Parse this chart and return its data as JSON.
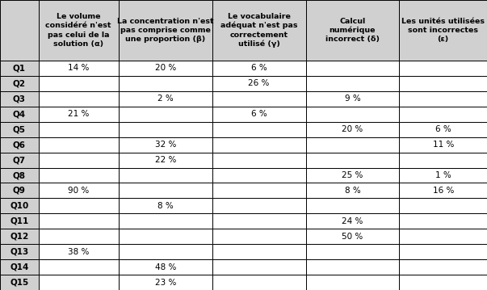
{
  "col_headers": [
    "Le volume\nconsidéré n'est\npas celui de la\nsolution (α)",
    "La concentration n'est\npas comprise comme\nune proportion (β)",
    "Le vocabulaire\nadéquat n'est pas\ncorrectement\nutilisé (γ)",
    "Calcul\nnumérique\nincorrect (δ)",
    "Les unités utilisées\nsont incorrectes\n(ε)"
  ],
  "row_labels": [
    "Q1",
    "Q2",
    "Q3",
    "Q4",
    "Q5",
    "Q6",
    "Q7",
    "Q8",
    "Q9",
    "Q10",
    "Q11",
    "Q12",
    "Q13",
    "Q14",
    "Q15"
  ],
  "cells": [
    [
      "14 %",
      "20 %",
      "6 %",
      "",
      ""
    ],
    [
      "",
      "",
      "26 %",
      "",
      ""
    ],
    [
      "",
      "2 %",
      "",
      "9 %",
      ""
    ],
    [
      "21 %",
      "",
      "6 %",
      "",
      ""
    ],
    [
      "",
      "",
      "",
      "20 %",
      "6 %"
    ],
    [
      "",
      "32 %",
      "",
      "",
      "11 %"
    ],
    [
      "",
      "22 %",
      "",
      "",
      ""
    ],
    [
      "",
      "",
      "",
      "25 %",
      "1 %"
    ],
    [
      "90 %",
      "",
      "",
      "8 %",
      "16 %"
    ],
    [
      "",
      "8 %",
      "",
      "",
      ""
    ],
    [
      "",
      "",
      "",
      "24 %",
      ""
    ],
    [
      "",
      "",
      "",
      "50 %",
      ""
    ],
    [
      "38 %",
      "",
      "",
      "",
      ""
    ],
    [
      "",
      "48 %",
      "",
      "",
      ""
    ],
    [
      "",
      "23 %",
      "",
      "",
      ""
    ]
  ],
  "bg_header": "#d0d0d0",
  "bg_row_label": "#d0d0d0",
  "bg_cell": "#ffffff",
  "text_color": "#000000",
  "border_color": "#000000",
  "header_fontsize": 6.8,
  "cell_fontsize": 7.5,
  "row_label_fontsize": 7.5
}
